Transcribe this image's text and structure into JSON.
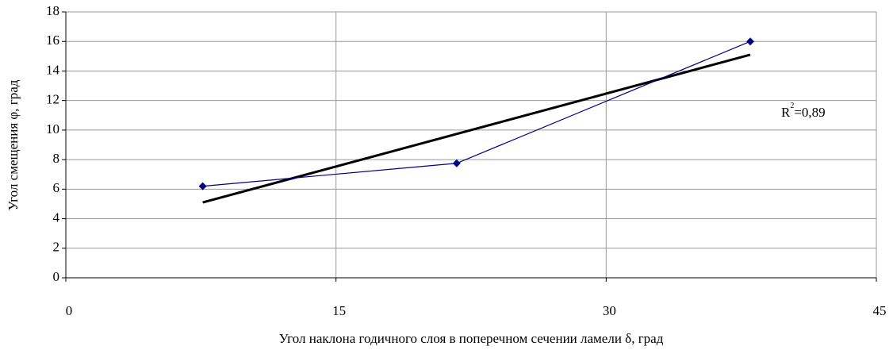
{
  "chart_data": {
    "type": "line",
    "x_label": "Угол наклона годичного слоя в поперечном сечении ламели δ, град",
    "y_label": "Угол смещения φ, град",
    "x": [
      7.6,
      21.7,
      38.0
    ],
    "series": [
      {
        "color": "#000080",
        "values": [
          6.2,
          7.75,
          16.0
        ]
      }
    ],
    "trendline": {
      "color": "#000000",
      "x": [
        7.6,
        38.0
      ],
      "values": [
        5.1,
        15.1
      ]
    },
    "annotation": {
      "base": "R",
      "exponent": "2",
      "text": "=0,89"
    },
    "xlim": [
      0,
      45
    ],
    "xticks": [
      0,
      15,
      30,
      45
    ],
    "ylim": [
      0,
      18
    ],
    "yticks": [
      0,
      2,
      4,
      6,
      8,
      10,
      12,
      14,
      16,
      18
    ],
    "grid": true
  }
}
